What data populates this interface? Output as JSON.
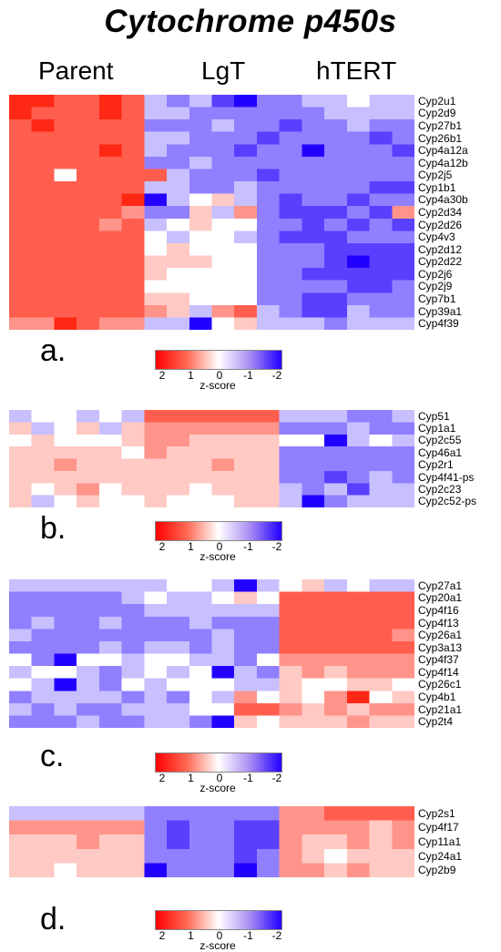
{
  "title": "Cytochrome p450s",
  "groups": [
    "Parent",
    "LgT",
    "hTERT"
  ],
  "legend": {
    "ticks": [
      "2",
      "1",
      "0",
      "-1",
      "-2"
    ],
    "label": "z-score",
    "colors": {
      "high": "#ff0000",
      "mid": "#ffffff",
      "low": "#2100ff"
    }
  },
  "chart_data": [
    {
      "type": "heatmap",
      "panel": "a.",
      "columns": 18,
      "column_groups": [
        "Parent",
        "LgT",
        "hTERT"
      ],
      "value_range": [
        2,
        -2
      ],
      "rows": [
        "Cyp2u1",
        "Cyp2d9",
        "Cyp27b1",
        "Cyp26b1",
        "Cyp4a12a",
        "Cyp4a12b",
        "Cyp2j5",
        "Cyp1b1",
        "Cyp4a30b",
        "Cyp2d34",
        "Cyp2d26",
        "Cyp4v3",
        "Cyp2d12",
        "Cyp2d22",
        "Cyp2j6",
        "Cyp2j9",
        "Cyp7b1",
        "Cyp39a1",
        "Cyp4f39"
      ],
      "values": [
        [
          2,
          2,
          1.5,
          1.5,
          2,
          1.5,
          -0.5,
          -1,
          -0.5,
          -1.5,
          -2,
          -1,
          -1,
          -0.5,
          -0.5,
          0,
          -0.5,
          -0.5
        ],
        [
          2,
          1.5,
          1.5,
          1.5,
          2,
          1.5,
          -0.5,
          -0.5,
          -1,
          -1,
          -1,
          -1,
          -1,
          -1,
          -0.5,
          -0.5,
          -0.5,
          -0.5
        ],
        [
          1.5,
          2,
          1.5,
          1.5,
          1.5,
          1.5,
          -1,
          -1,
          -1,
          -0.5,
          -1,
          -1,
          -1.5,
          -1,
          -1,
          -0.5,
          -1,
          -1
        ],
        [
          1.5,
          1.5,
          1.5,
          1.5,
          1.5,
          1.5,
          -0.5,
          -0.5,
          -1,
          -1,
          -1,
          -1.5,
          -1,
          -1,
          -1,
          -1,
          -1.5,
          -1
        ],
        [
          1.5,
          1.5,
          1.5,
          1.5,
          2,
          1.5,
          -0.5,
          -1,
          -1,
          -1,
          -1.5,
          -1,
          -1,
          -2,
          -1,
          -1,
          -1,
          -1.5
        ],
        [
          1.5,
          1.5,
          1.5,
          1.5,
          1.5,
          1.5,
          -1,
          -1,
          -0.5,
          -1,
          -1,
          -1,
          -1,
          -1,
          -1,
          -1,
          -1,
          -1
        ],
        [
          1.5,
          1.5,
          0,
          1.5,
          1.5,
          1.5,
          1.5,
          -0.5,
          -1,
          -1,
          -1,
          -1.5,
          -1,
          -1,
          -1,
          -1,
          -1,
          -1
        ],
        [
          1.5,
          1.5,
          1.5,
          1.5,
          1.5,
          1.5,
          -0.5,
          -0.5,
          -1,
          -1,
          -0.5,
          -1,
          -1,
          -1,
          -1,
          -1,
          -1.5,
          -1.5
        ],
        [
          1.5,
          1.5,
          1.5,
          1.5,
          1.5,
          2,
          -2,
          -0.5,
          0,
          0.5,
          -0.5,
          -1,
          -1.5,
          -1,
          -1,
          -1.5,
          -1,
          -1
        ],
        [
          1.5,
          1.5,
          1.5,
          1.5,
          1.5,
          1,
          -1,
          -1,
          0.5,
          -0.5,
          1,
          -1,
          -1.5,
          -1.5,
          -1.5,
          -1,
          -1.5,
          1
        ],
        [
          1.5,
          1.5,
          1.5,
          1.5,
          1,
          1.5,
          -0.5,
          0,
          0.5,
          0,
          0,
          -1,
          -1,
          -1.5,
          -1,
          -1.5,
          -1,
          -1.5
        ],
        [
          1.5,
          1.5,
          1.5,
          1.5,
          1.5,
          1.5,
          0,
          -0.5,
          0,
          0,
          -0.5,
          -1,
          -1.5,
          -1.5,
          -1.5,
          -1,
          -1,
          -1
        ],
        [
          1.5,
          1.5,
          1.5,
          1.5,
          1.5,
          1.5,
          0,
          0.5,
          0,
          0,
          0,
          -1,
          -1,
          -1,
          -1.5,
          -1.5,
          -1.5,
          -1.5
        ],
        [
          1.5,
          1.5,
          1.5,
          1.5,
          1.5,
          1.5,
          0.5,
          0.5,
          0.5,
          0,
          0,
          -1,
          -1,
          -1,
          -1.5,
          -2,
          -1.5,
          -1.5
        ],
        [
          1.5,
          1.5,
          1.5,
          1.5,
          1.5,
          1.5,
          0.5,
          0,
          0,
          0,
          0,
          -1,
          -1,
          -1.5,
          -1.5,
          -1.5,
          -1.5,
          -1.5
        ],
        [
          1.5,
          1.5,
          1.5,
          1.5,
          1.5,
          1.5,
          0,
          0,
          0,
          0,
          0,
          -1,
          -1,
          -1,
          -1,
          -1.5,
          -1.5,
          -1
        ],
        [
          1.5,
          1.5,
          1.5,
          1.5,
          1.5,
          1.5,
          0.5,
          0.5,
          0,
          0,
          0,
          -1,
          -1,
          -1.5,
          -1.5,
          -1,
          -1,
          -1
        ],
        [
          1.5,
          1.5,
          1.5,
          1.5,
          1.5,
          1.5,
          1,
          0.5,
          -0.5,
          1,
          1.5,
          -0.5,
          -1,
          -1.5,
          -1.5,
          -0.5,
          -1,
          -1
        ],
        [
          1,
          1,
          2,
          1.5,
          1,
          1,
          -0.5,
          -0.5,
          -2,
          0,
          0.5,
          -0.5,
          -0.5,
          -0.5,
          -1,
          -0.5,
          -0.5,
          -0.5
        ]
      ]
    },
    {
      "type": "heatmap",
      "panel": "b.",
      "columns": 18,
      "column_groups": [
        "Parent",
        "LgT",
        "hTERT"
      ],
      "value_range": [
        2,
        -2
      ],
      "rows": [
        "Cyp51",
        "Cyp1a1",
        "Cyp2c55",
        "Cyp46a1",
        "Cyp2r1",
        "Cyp4f41-ps",
        "Cyp2c23",
        "Cyp2c52-ps"
      ],
      "values": [
        [
          -0.5,
          0,
          0,
          -0.5,
          0,
          -0.5,
          1.5,
          1.5,
          1.5,
          1.5,
          1.5,
          1.5,
          -0.5,
          -0.5,
          -0.5,
          -1,
          -1,
          -0.5
        ],
        [
          0.5,
          -0.5,
          0,
          0.5,
          -0.5,
          0.5,
          1,
          1,
          1,
          1,
          1,
          1,
          -1,
          -1,
          -1,
          -0.5,
          -1,
          -1
        ],
        [
          0,
          0.5,
          0,
          0,
          0,
          0.5,
          1,
          1,
          0.5,
          0.5,
          0.5,
          0.5,
          0,
          0,
          -2,
          -0.5,
          0,
          -0.5
        ],
        [
          0.5,
          0.5,
          0.5,
          0.5,
          0.5,
          0,
          1,
          0.5,
          0.5,
          0.5,
          0.5,
          0.5,
          -1,
          -1,
          -1,
          -1,
          -1,
          -1
        ],
        [
          0.5,
          0.5,
          1,
          0.5,
          0.5,
          0.5,
          0.5,
          0.5,
          0.5,
          1,
          0.5,
          0.5,
          -1,
          -1,
          -1,
          -1,
          -1,
          -1
        ],
        [
          0.5,
          0.5,
          0.5,
          0.5,
          0.5,
          0.5,
          0.5,
          0.5,
          0.5,
          0.5,
          0.5,
          0.5,
          -1,
          -1,
          -1.5,
          -1,
          -0.5,
          -1
        ],
        [
          0.5,
          0,
          0.5,
          1,
          0,
          0.5,
          0.5,
          0.5,
          0,
          0.5,
          0.5,
          0.5,
          -0.5,
          -1,
          -0.5,
          -1.5,
          -0.5,
          -0.5
        ],
        [
          0.5,
          -0.5,
          0,
          0.5,
          0,
          0,
          0.5,
          0,
          0,
          0,
          0.5,
          0.5,
          -0.5,
          -2,
          -1,
          -0.5,
          -0.5,
          -0.5
        ]
      ]
    },
    {
      "type": "heatmap",
      "panel": "c.",
      "columns": 18,
      "column_groups": [
        "Parent",
        "LgT",
        "hTERT"
      ],
      "value_range": [
        2,
        -2
      ],
      "rows": [
        "Cyp27a1",
        "Cyp20a1",
        "Cyp4f16",
        "Cyp4f13",
        "Cyp26a1",
        "Cyp3a13",
        "Cyp4f37",
        "Cyp4f14",
        "Cyp26c1",
        "Cyp4b1",
        "Cyp21a1",
        "Cyp2t4"
      ],
      "values": [
        [
          -0.5,
          -0.5,
          -0.5,
          -0.5,
          -0.5,
          -0.5,
          -0.5,
          0,
          0,
          -0.5,
          -2,
          -0.5,
          0,
          0.5,
          -0.5,
          0,
          -0.5,
          -0.5
        ],
        [
          -1,
          -1,
          -1,
          -1,
          -1,
          -0.5,
          0,
          -0.5,
          -0.5,
          0,
          0.5,
          0,
          1.5,
          1.5,
          1.5,
          1.5,
          1.5,
          1.5
        ],
        [
          -1,
          -1,
          -1,
          -1,
          -1,
          -1,
          -0.5,
          -0.5,
          -0.5,
          -0.5,
          -0.5,
          -0.5,
          1.5,
          1.5,
          1.5,
          1.5,
          1.5,
          1.5
        ],
        [
          -1,
          -0.5,
          -1,
          -1,
          -0.5,
          -1,
          -1,
          -1,
          -0.5,
          -1,
          -1,
          -1,
          1.5,
          1.5,
          1.5,
          1.5,
          1.5,
          1.5
        ],
        [
          -0.5,
          -1,
          -1,
          -1,
          -1,
          -1,
          -1,
          -1,
          -1,
          -0.5,
          -1,
          -1,
          1.5,
          1.5,
          1.5,
          1.5,
          1.5,
          1
        ],
        [
          -1,
          -1,
          -1,
          -1,
          -0.5,
          -1,
          -0.5,
          -0.5,
          -1,
          -0.5,
          -1,
          -1,
          1.5,
          1.5,
          1.5,
          1.5,
          1.5,
          1.5
        ],
        [
          0,
          -1,
          -2,
          0,
          0,
          -0.5,
          0,
          0,
          -0.5,
          -0.5,
          -1,
          0,
          1,
          1,
          1,
          1,
          1,
          1
        ],
        [
          -0.5,
          0,
          0,
          -0.5,
          -1,
          -0.5,
          0,
          -0.5,
          0,
          -2,
          -0.5,
          -1,
          0.5,
          1,
          0.5,
          1,
          1,
          1
        ],
        [
          0,
          -0.5,
          -2,
          -0.5,
          -1,
          0,
          -0.5,
          0,
          0,
          0,
          -0.5,
          -0.5,
          0.5,
          0,
          0,
          0.5,
          0.5,
          0
        ],
        [
          -1,
          -0.5,
          -0.5,
          -0.5,
          -0.5,
          -1,
          -0.5,
          -1,
          0,
          -0.5,
          1,
          0,
          0.5,
          0,
          1,
          2,
          0,
          0.5
        ],
        [
          -0.5,
          -1,
          -0.5,
          -1,
          -1,
          -0.5,
          -0.5,
          -0.5,
          0,
          0,
          1.5,
          1.5,
          1,
          0.5,
          1,
          0.5,
          1,
          1
        ],
        [
          -1,
          -1,
          -1,
          -0.5,
          -1,
          -1,
          -0.5,
          -0.5,
          -1,
          -2,
          0.5,
          0,
          0.5,
          0.5,
          0.5,
          1,
          0.5,
          0.5
        ]
      ]
    },
    {
      "type": "heatmap",
      "panel": "d.",
      "columns": 18,
      "column_groups": [
        "Parent",
        "LgT",
        "hTERT"
      ],
      "value_range": [
        2,
        -2
      ],
      "rows": [
        "Cyp2s1",
        "Cyp4f17",
        "Cyp11a1",
        "Cyp24a1",
        "Cyp2b9"
      ],
      "values": [
        [
          -0.5,
          -0.5,
          -0.5,
          -0.5,
          -0.5,
          -0.5,
          -1,
          -1,
          -1,
          -1,
          -1,
          -1,
          1,
          1,
          1.5,
          1.5,
          1.5,
          1.5
        ],
        [
          1,
          1,
          1,
          1,
          1,
          1,
          -1,
          -1.5,
          -1,
          -1,
          -1.5,
          -1.5,
          1,
          1,
          1,
          1,
          0.5,
          1
        ],
        [
          0.5,
          0.5,
          0.5,
          1,
          0.5,
          0.5,
          -1,
          -1.5,
          -1,
          -1,
          -1.5,
          -1.5,
          1,
          0.5,
          0.5,
          1,
          0.5,
          1
        ],
        [
          0.5,
          0.5,
          0.5,
          0.5,
          0.5,
          0.5,
          -1,
          -1,
          -1,
          -1,
          -1.5,
          -1,
          1,
          0.5,
          0,
          0.5,
          0.5,
          0.5
        ],
        [
          0.5,
          0.5,
          0,
          0.5,
          0.5,
          0.5,
          -2,
          -1,
          -1,
          -1,
          -2,
          -1,
          1,
          1,
          0.5,
          1,
          0.5,
          0.5
        ]
      ]
    }
  ]
}
